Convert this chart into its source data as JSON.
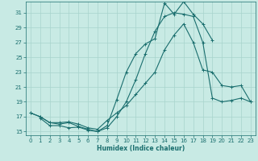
{
  "title": "",
  "xlabel": "Humidex (Indice chaleur)",
  "xlim": [
    -0.5,
    23.5
  ],
  "ylim": [
    14.5,
    32.5
  ],
  "xticks": [
    0,
    1,
    2,
    3,
    4,
    5,
    6,
    7,
    8,
    9,
    10,
    11,
    12,
    13,
    14,
    15,
    16,
    17,
    18,
    19,
    20,
    21,
    22,
    23
  ],
  "yticks": [
    15,
    17,
    19,
    21,
    23,
    25,
    27,
    29,
    31
  ],
  "bg_color": "#c8eae4",
  "grid_color": "#a8d4cc",
  "line_color": "#1a6e6e",
  "lines": [
    {
      "x": [
        0,
        1,
        2,
        3,
        4,
        5,
        6,
        7,
        8,
        9,
        10,
        11,
        12,
        13,
        14,
        15,
        16,
        17,
        18,
        19
      ],
      "y": [
        17.5,
        17.0,
        16.2,
        16.0,
        16.2,
        15.7,
        15.3,
        15.0,
        15.8,
        19.3,
        23.0,
        25.5,
        26.8,
        27.5,
        32.3,
        30.8,
        32.5,
        30.8,
        29.5,
        27.3
      ]
    },
    {
      "x": [
        0,
        1,
        2,
        3,
        4,
        5,
        6,
        7,
        8,
        9,
        10,
        11,
        12,
        13,
        14,
        15,
        16,
        17,
        18,
        19,
        20,
        21,
        22,
        23
      ],
      "y": [
        17.5,
        17.0,
        16.2,
        16.2,
        16.3,
        16.0,
        15.5,
        15.3,
        16.5,
        17.5,
        18.5,
        20.0,
        21.5,
        23.0,
        26.0,
        28.0,
        29.5,
        27.0,
        23.3,
        23.0,
        21.2,
        21.0,
        21.2,
        19.0
      ]
    },
    {
      "x": [
        1,
        2,
        3,
        4,
        5,
        6,
        7,
        8,
        9,
        10,
        11,
        12,
        13,
        14,
        15,
        16,
        17,
        18,
        19,
        20,
        21,
        22,
        23
      ],
      "y": [
        16.8,
        15.8,
        15.8,
        15.5,
        15.6,
        15.2,
        15.0,
        15.5,
        17.0,
        19.0,
        22.0,
        25.5,
        28.5,
        30.5,
        31.0,
        30.8,
        30.5,
        27.0,
        19.5,
        19.0,
        19.2,
        19.5,
        19.0
      ]
    }
  ]
}
